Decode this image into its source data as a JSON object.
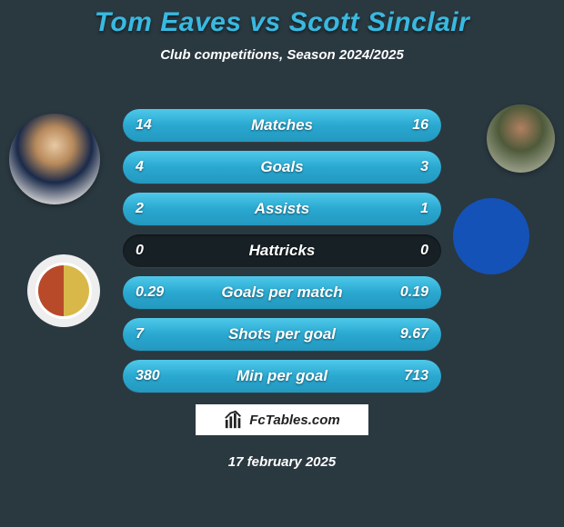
{
  "title": {
    "player1": "Tom Eaves",
    "vs": "vs",
    "player2": "Scott Sinclair",
    "color": "#39b9e0",
    "fontsize": 30
  },
  "subtitle": "Club competitions, Season 2024/2025",
  "date": "17 february 2025",
  "logo_text": "FcTables.com",
  "background_color": "#2a3840",
  "text_color": "#ffffff",
  "bar": {
    "track_color": "#141c20",
    "fill_gradient": [
      "#4ec9eb",
      "#2aa8d0",
      "#2398bf"
    ],
    "height": 36,
    "radius": 18
  },
  "avatars": {
    "player1": {
      "name": "player1-photo"
    },
    "player2": {
      "name": "player2-photo"
    },
    "crest1": {
      "name": "player1-club-crest"
    },
    "crest2": {
      "name": "player2-club-crest"
    }
  },
  "stats": [
    {
      "label": "Matches",
      "left_display": "14",
      "right_display": "16",
      "left_pct": 46.7,
      "right_pct": 53.3
    },
    {
      "label": "Goals",
      "left_display": "4",
      "right_display": "3",
      "left_pct": 57.1,
      "right_pct": 42.9
    },
    {
      "label": "Assists",
      "left_display": "2",
      "right_display": "1",
      "left_pct": 66.7,
      "right_pct": 33.3
    },
    {
      "label": "Hattricks",
      "left_display": "0",
      "right_display": "0",
      "left_pct": 0,
      "right_pct": 0
    },
    {
      "label": "Goals per match",
      "left_display": "0.29",
      "right_display": "0.19",
      "left_pct": 60.4,
      "right_pct": 39.6
    },
    {
      "label": "Shots per goal",
      "left_display": "7",
      "right_display": "9.67",
      "left_pct": 42.0,
      "right_pct": 58.0
    },
    {
      "label": "Min per goal",
      "left_display": "380",
      "right_display": "713",
      "left_pct": 34.8,
      "right_pct": 65.2
    }
  ]
}
